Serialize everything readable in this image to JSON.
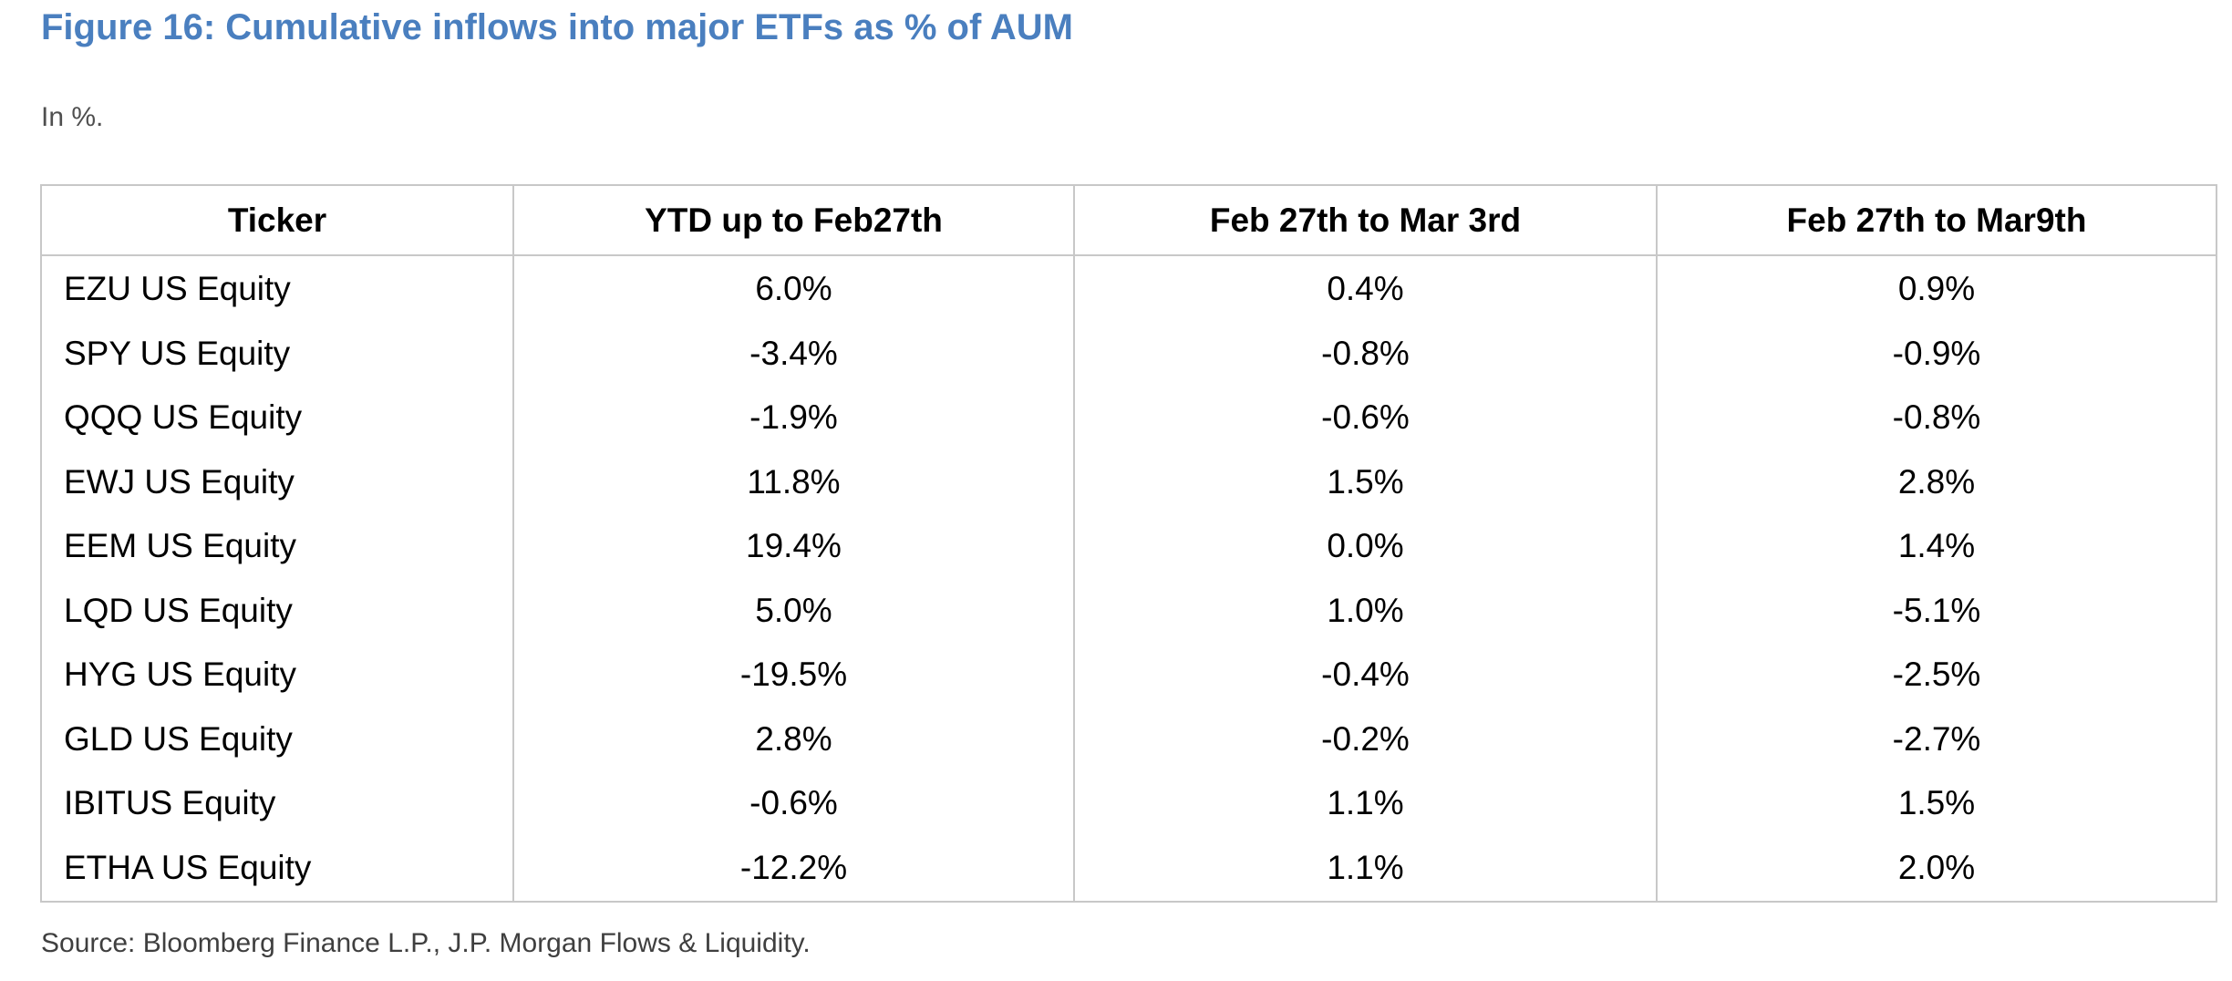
{
  "figure": {
    "title": "Figure 16: Cumulative inflows into major ETFs as % of AUM",
    "units_note": "In %.",
    "source": "Source: Bloomberg Finance L.P., J.P. Morgan Flows & Liquidity."
  },
  "colors": {
    "title_blue": "#4A7FBF",
    "border_gray": "#C8C8C8",
    "subtitle_gray": "#4F4F4F",
    "source_gray": "#3F3F3F",
    "body_text": "#000000"
  },
  "chart_data": {
    "type": "table",
    "title": "Figure 16: Cumulative inflows into major ETFs as % of AUM",
    "units": "In %.",
    "columns": [
      "Ticker",
      "YTD up to Feb27th",
      "Feb 27th to Mar 3rd",
      "Feb 27th to Mar9th"
    ],
    "rows": [
      {
        "ticker": "EZU US Equity",
        "ytd_to_feb27": "6.0%",
        "feb27_to_mar3": "0.4%",
        "feb27_to_mar9": "0.9%"
      },
      {
        "ticker": "SPY US Equity",
        "ytd_to_feb27": "-3.4%",
        "feb27_to_mar3": "-0.8%",
        "feb27_to_mar9": "-0.9%"
      },
      {
        "ticker": "QQQ US Equity",
        "ytd_to_feb27": "-1.9%",
        "feb27_to_mar3": "-0.6%",
        "feb27_to_mar9": "-0.8%"
      },
      {
        "ticker": "EWJ US Equity",
        "ytd_to_feb27": "11.8%",
        "feb27_to_mar3": "1.5%",
        "feb27_to_mar9": "2.8%"
      },
      {
        "ticker": "EEM US Equity",
        "ytd_to_feb27": "19.4%",
        "feb27_to_mar3": "0.0%",
        "feb27_to_mar9": "1.4%"
      },
      {
        "ticker": "LQD US Equity",
        "ytd_to_feb27": "5.0%",
        "feb27_to_mar3": "1.0%",
        "feb27_to_mar9": "-5.1%"
      },
      {
        "ticker": "HYG US Equity",
        "ytd_to_feb27": "-19.5%",
        "feb27_to_mar3": "-0.4%",
        "feb27_to_mar9": "-2.5%"
      },
      {
        "ticker": "GLD US Equity",
        "ytd_to_feb27": "2.8%",
        "feb27_to_mar3": "-0.2%",
        "feb27_to_mar9": "-2.7%"
      },
      {
        "ticker": "IBITUS Equity",
        "ytd_to_feb27": "-0.6%",
        "feb27_to_mar3": "1.1%",
        "feb27_to_mar9": "1.5%"
      },
      {
        "ticker": "ETHA US Equity",
        "ytd_to_feb27": "-12.2%",
        "feb27_to_mar3": "1.1%",
        "feb27_to_mar9": "2.0%"
      }
    ],
    "source": "Source: Bloomberg Finance L.P., J.P. Morgan Flows & Liquidity.",
    "layout": {
      "grid": "outer border, header underline and column separators only",
      "value_alignment": "center",
      "ticker_alignment": "left"
    }
  }
}
